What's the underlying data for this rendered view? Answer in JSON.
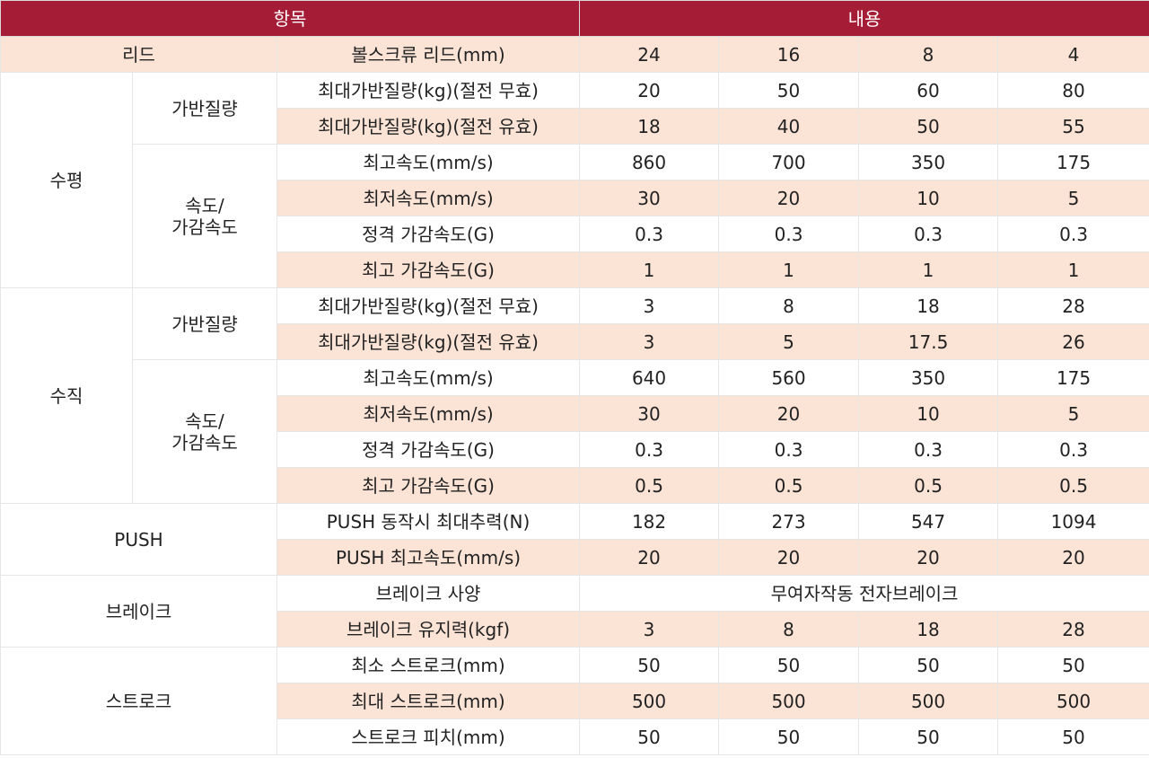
{
  "header": {
    "item": "항목",
    "content": "내용"
  },
  "lead": {
    "label": "리드",
    "sub": "볼스크류 리드(mm)",
    "values": [
      "24",
      "16",
      "8",
      "4"
    ]
  },
  "horizontal": {
    "label": "수평",
    "payload_label": "가반질량",
    "speed_label_1": "속도/",
    "speed_label_2": "가감속도",
    "rows": [
      {
        "label": "최대가반질량(kg)(절전 무효)",
        "values": [
          "20",
          "50",
          "60",
          "80"
        ]
      },
      {
        "label": "최대가반질량(kg)(절전 유효)",
        "values": [
          "18",
          "40",
          "50",
          "55"
        ]
      },
      {
        "label": "최고속도(mm/s)",
        "values": [
          "860",
          "700",
          "350",
          "175"
        ]
      },
      {
        "label": "최저속도(mm/s)",
        "values": [
          "30",
          "20",
          "10",
          "5"
        ]
      },
      {
        "label": "정격 가감속도(G)",
        "values": [
          "0.3",
          "0.3",
          "0.3",
          "0.3"
        ]
      },
      {
        "label": "최고 가감속도(G)",
        "values": [
          "1",
          "1",
          "1",
          "1"
        ]
      }
    ]
  },
  "vertical": {
    "label": "수직",
    "payload_label": "가반질량",
    "speed_label_1": "속도/",
    "speed_label_2": "가감속도",
    "rows": [
      {
        "label": "최대가반질량(kg)(절전 무효)",
        "values": [
          "3",
          "8",
          "18",
          "28"
        ]
      },
      {
        "label": "최대가반질량(kg)(절전 유효)",
        "values": [
          "3",
          "5",
          "17.5",
          "26"
        ]
      },
      {
        "label": "최고속도(mm/s)",
        "values": [
          "640",
          "560",
          "350",
          "175"
        ]
      },
      {
        "label": "최저속도(mm/s)",
        "values": [
          "30",
          "20",
          "10",
          "5"
        ]
      },
      {
        "label": "정격 가감속도(G)",
        "values": [
          "0.3",
          "0.3",
          "0.3",
          "0.3"
        ]
      },
      {
        "label": "최고 가감속도(G)",
        "values": [
          "0.5",
          "0.5",
          "0.5",
          "0.5"
        ]
      }
    ]
  },
  "push": {
    "label": "PUSH",
    "rows": [
      {
        "label": "PUSH 동작시 최대추력(N)",
        "values": [
          "182",
          "273",
          "547",
          "1094"
        ]
      },
      {
        "label": "PUSH 최고속도(mm/s)",
        "values": [
          "20",
          "20",
          "20",
          "20"
        ]
      }
    ]
  },
  "brake": {
    "label": "브레이크",
    "spec_label": "브레이크 사양",
    "spec_value": "무여자작동 전자브레이크",
    "hold_label": "브레이크 유지력(kgf)",
    "hold_values": [
      "3",
      "8",
      "18",
      "28"
    ]
  },
  "stroke": {
    "label": "스트로크",
    "rows": [
      {
        "label": "최소 스트로크(mm)",
        "values": [
          "50",
          "50",
          "50",
          "50"
        ]
      },
      {
        "label": "최대 스트로크(mm)",
        "values": [
          "500",
          "500",
          "500",
          "500"
        ]
      },
      {
        "label": "스트로크 피치(mm)",
        "values": [
          "50",
          "50",
          "50",
          "50"
        ]
      }
    ]
  },
  "colors": {
    "header_bg": "#a51c36",
    "shade_bg": "#fbe3d6"
  }
}
